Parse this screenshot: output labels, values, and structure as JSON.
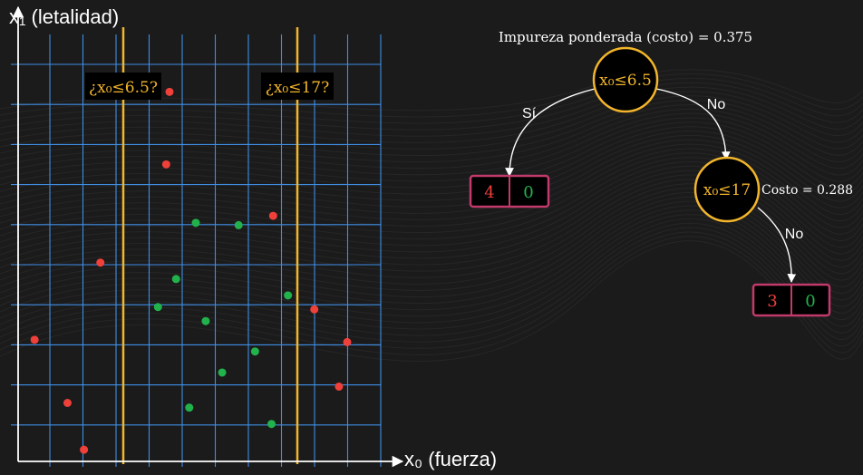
{
  "scatter": {
    "x_axis_label": "x₀ (fuerza)",
    "y_axis_label": "x₁ (letalidad)",
    "split_labels": [
      "¿x₀≤6.5?",
      "¿x₀≤17?"
    ],
    "split_color": "#f2b52b",
    "grid_color": "#3f8ee6",
    "class_colors": {
      "red": "#f0403a",
      "green": "#22b24c"
    },
    "points": [
      {
        "x": 1,
        "y": 5.2,
        "c": "red"
      },
      {
        "x": 3,
        "y": 2.5,
        "c": "red"
      },
      {
        "x": 4,
        "y": 0.5,
        "c": "red"
      },
      {
        "x": 5,
        "y": 8.5,
        "c": "red"
      },
      {
        "x": 9.2,
        "y": 15.8,
        "c": "red"
      },
      {
        "x": 9,
        "y": 12.7,
        "c": "red"
      },
      {
        "x": 15.5,
        "y": 10.5,
        "c": "red"
      },
      {
        "x": 18,
        "y": 6.5,
        "c": "red"
      },
      {
        "x": 20,
        "y": 5.1,
        "c": "red"
      },
      {
        "x": 19.5,
        "y": 3.2,
        "c": "red"
      },
      {
        "x": 8.5,
        "y": 6.6,
        "c": "green"
      },
      {
        "x": 9.6,
        "y": 7.8,
        "c": "green"
      },
      {
        "x": 10.8,
        "y": 10.2,
        "c": "green"
      },
      {
        "x": 13.4,
        "y": 10.1,
        "c": "green"
      },
      {
        "x": 11.4,
        "y": 6.0,
        "c": "green"
      },
      {
        "x": 10.4,
        "y": 2.3,
        "c": "green"
      },
      {
        "x": 12.4,
        "y": 3.8,
        "c": "green"
      },
      {
        "x": 14.4,
        "y": 4.7,
        "c": "green"
      },
      {
        "x": 16.4,
        "y": 7.1,
        "c": "green"
      },
      {
        "x": 15.4,
        "y": 1.6,
        "c": "green"
      }
    ]
  },
  "tree": {
    "title": "Impureza ponderada (costo) = 0.375",
    "root_label": "x₀≤6.5",
    "yes_label": "Sí",
    "no_label_1": "No",
    "child_label": "x₀≤17",
    "child_cost": "Costo = 0.288",
    "no_label_2": "No",
    "leaf1": {
      "red": "4",
      "green": "0"
    },
    "leaf2": {
      "red": "3",
      "green": "0"
    },
    "node_border": "#f2b52b",
    "leaf_border": "#c23a6b"
  }
}
